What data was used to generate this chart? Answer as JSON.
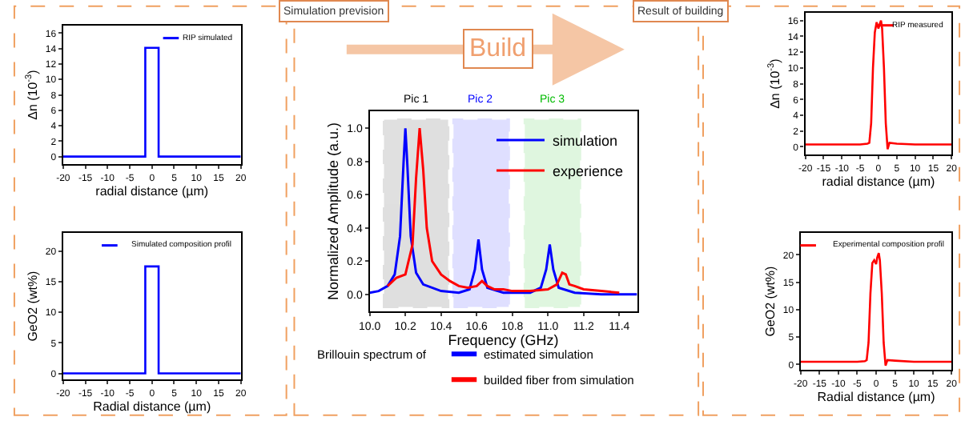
{
  "chart_data": [
    {
      "type": "line",
      "xlabel": "radial distance (µm)",
      "ylabel": "Δn (10$^{-3}$)",
      "xlim": [
        -20,
        20
      ],
      "xticks": [
        -20,
        -15,
        -10,
        -5,
        0,
        5,
        10,
        15,
        20
      ],
      "ylim": [
        -1,
        17
      ],
      "yticks": [
        0,
        2,
        4,
        6,
        8,
        10,
        12,
        14,
        16
      ],
      "legend": "top right",
      "series": [
        {
          "name": "RIP simulated",
          "color": "#0000ff",
          "x": [
            -20,
            -1.5,
            -1.5,
            1.5,
            1.5,
            20
          ],
          "values": [
            0,
            0,
            14.1,
            14.1,
            0,
            0
          ]
        }
      ]
    },
    {
      "type": "line",
      "xlabel": "Radial distance (µm)",
      "ylabel": "GeO2 (wt%)",
      "xlim": [
        -20,
        20
      ],
      "xticks": [
        -20,
        -15,
        -10,
        -5,
        0,
        5,
        10,
        15,
        20
      ],
      "ylim": [
        -1,
        23
      ],
      "yticks": [
        0,
        5,
        10,
        15,
        20
      ],
      "legend": "top right",
      "series": [
        {
          "name": "Simulated composition profil",
          "color": "#0000ff",
          "x": [
            -20,
            -1.5,
            -1.5,
            1.5,
            1.5,
            20
          ],
          "values": [
            0,
            0,
            17.5,
            17.5,
            0,
            0
          ]
        }
      ]
    },
    {
      "type": "line",
      "xlabel": "Frequency (GHz)",
      "ylabel": "Normalized Amplitude (a.u.)",
      "xlim": [
        10.0,
        11.5
      ],
      "xticks": [
        {
          "value": 10,
          "label": "10.0"
        },
        10.2,
        10.4,
        10.6,
        10.8,
        {
          "value": 11,
          "label": "11.0"
        },
        11.2,
        11.4
      ],
      "ylim": [
        -0.1,
        1.1
      ],
      "yticks": [
        {
          "value": 0,
          "label": "0.0"
        },
        0.2,
        0.4,
        0.6,
        0.8,
        {
          "value": 1,
          "label": "1.0"
        }
      ],
      "legend": "top right",
      "series": [
        {
          "name": "simulation",
          "color": "#0000ff",
          "x": [
            10.0,
            10.05,
            10.1,
            10.14,
            10.17,
            10.19,
            10.2,
            10.21,
            10.23,
            10.26,
            10.3,
            10.4,
            10.5,
            10.56,
            10.59,
            10.61,
            10.63,
            10.66,
            10.75,
            10.9,
            10.96,
            10.99,
            11.01,
            11.03,
            11.06,
            11.15,
            11.3,
            11.5
          ],
          "values": [
            0.01,
            0.02,
            0.05,
            0.12,
            0.35,
            0.8,
            1.0,
            0.8,
            0.35,
            0.13,
            0.06,
            0.02,
            0.01,
            0.03,
            0.15,
            0.33,
            0.15,
            0.04,
            0.01,
            0.01,
            0.04,
            0.15,
            0.3,
            0.15,
            0.04,
            0.01,
            0.0,
            0.0
          ]
        },
        {
          "name": "experience",
          "color": "#ff0000",
          "x": [
            10.1,
            10.15,
            10.2,
            10.24,
            10.26,
            10.28,
            10.3,
            10.32,
            10.35,
            10.4,
            10.45,
            10.5,
            10.55,
            10.6,
            10.63,
            10.66,
            10.7,
            10.75,
            10.8,
            10.9,
            11.0,
            11.05,
            11.08,
            11.1,
            11.12,
            11.15,
            11.2,
            11.3,
            11.4
          ],
          "values": [
            0.05,
            0.1,
            0.12,
            0.3,
            0.7,
            1.0,
            0.75,
            0.4,
            0.2,
            0.12,
            0.08,
            0.05,
            0.04,
            0.05,
            0.08,
            0.05,
            0.03,
            0.03,
            0.02,
            0.02,
            0.03,
            0.06,
            0.13,
            0.12,
            0.06,
            0.05,
            0.03,
            0.02,
            0.01
          ]
        }
      ],
      "bands": [
        {
          "axis": "x",
          "from": 10.08,
          "to": 10.44,
          "label": "Pic 1",
          "color": "#000000"
        },
        {
          "axis": "x",
          "from": 10.47,
          "to": 10.78,
          "label": "Pic 2",
          "color": "#0000ff"
        },
        {
          "axis": "x",
          "from": 10.87,
          "to": 11.18,
          "label": "Pic 3",
          "color": "#00bb00"
        }
      ],
      "annotations": [
        "Brillouin spectrum of",
        "estimated simulation",
        "builded fiber from simulation",
        "Simulation prevision",
        "Result of building",
        "Build"
      ]
    },
    {
      "type": "line",
      "xlabel": "radial distance (µm)",
      "ylabel": "Δn (10$^{-3}$)",
      "xlim": [
        -20,
        20
      ],
      "xticks": [
        -20,
        -15,
        -10,
        -5,
        0,
        5,
        10,
        15,
        20
      ],
      "ylim": [
        -1,
        17
      ],
      "yticks": [
        0,
        2,
        4,
        6,
        8,
        10,
        12,
        14,
        16
      ],
      "legend": "top right",
      "series": [
        {
          "name": "RIP measured",
          "color": "#ff0000",
          "x": [
            -20,
            -15,
            -10,
            -5,
            -3,
            -2.5,
            -2,
            -1.5,
            -1,
            -0.5,
            0,
            0.3,
            0.7,
            1,
            1.5,
            2,
            2.5,
            3,
            5,
            10,
            15,
            20
          ],
          "values": [
            0.3,
            0.3,
            0.3,
            0.3,
            0.4,
            0.5,
            3,
            10,
            14.5,
            15.8,
            15,
            15.5,
            16,
            15,
            10,
            3,
            -0.3,
            0.5,
            0.4,
            0.3,
            0.3,
            0.3
          ]
        }
      ]
    },
    {
      "type": "line",
      "xlabel": "Radial distance (µm)",
      "ylabel": "GeO2 (wt%)",
      "xlim": [
        -20,
        20
      ],
      "xticks": [
        -20,
        -15,
        -10,
        -5,
        0,
        5,
        10,
        15,
        20
      ],
      "ylim": [
        -1,
        24
      ],
      "yticks": [
        0,
        5,
        10,
        15,
        20
      ],
      "legend": "top right",
      "series": [
        {
          "name": "Experimental composition profil",
          "color": "#ff0000",
          "x": [
            -20,
            -15,
            -10,
            -5,
            -3,
            -2.5,
            -2,
            -1.5,
            -1,
            -0.5,
            0,
            0.3,
            0.7,
            1,
            1.5,
            2,
            2.5,
            3,
            5,
            10,
            15,
            20
          ],
          "values": [
            0.5,
            0.5,
            0.5,
            0.5,
            0.6,
            0.8,
            4,
            13,
            18.5,
            19,
            18.3,
            19.5,
            20.3,
            19,
            13,
            4,
            -0.2,
            0.8,
            0.7,
            0.5,
            0.5,
            0.5
          ]
        }
      ]
    }
  ]
}
